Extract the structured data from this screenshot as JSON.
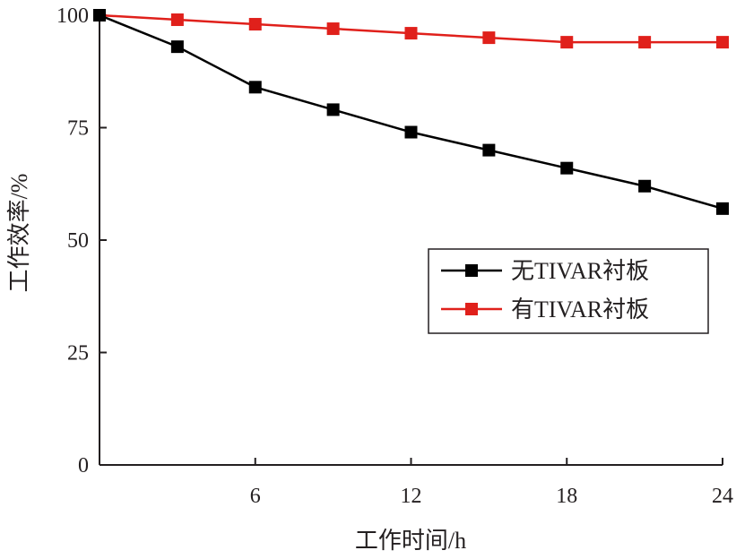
{
  "chart_data": {
    "type": "line",
    "title": "",
    "xlabel": "工作时间/h",
    "ylabel": "工作效率/%",
    "xlim": [
      0,
      24
    ],
    "ylim": [
      0,
      100
    ],
    "xticks": [
      6,
      12,
      18,
      24
    ],
    "yticks": [
      0,
      25,
      50,
      75,
      100
    ],
    "x": [
      0,
      3,
      6,
      9,
      12,
      15,
      18,
      21,
      24
    ],
    "series": [
      {
        "name": "无TIVAR衬板",
        "color": "#000000",
        "values": [
          100,
          93,
          84,
          79,
          74,
          70,
          66,
          62,
          57
        ]
      },
      {
        "name": "有TIVAR衬板",
        "color": "#e0201b",
        "values": [
          100,
          99,
          98,
          97,
          96,
          95,
          94,
          94,
          94
        ]
      }
    ],
    "legend_position": "center-right",
    "grid": false
  }
}
